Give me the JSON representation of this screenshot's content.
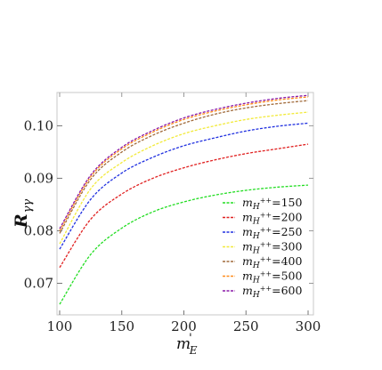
{
  "chart_data": {
    "type": "line",
    "xlabel_main": "m",
    "xlabel_sup": "'",
    "xlabel_sub": "E",
    "ylabel_main": "R",
    "ylabel_sub": "γγ",
    "xlim": [
      100,
      300
    ],
    "ylim": [
      0.065,
      0.106
    ],
    "xticks": [
      100,
      150,
      200,
      250,
      300
    ],
    "yticks": [
      0.07,
      0.08,
      0.09,
      0.1
    ],
    "ytick_labels": [
      "0.07",
      "0.08",
      "0.09",
      "0.10"
    ],
    "legend_position": "bottom-right",
    "line_style": "dashed",
    "x": [
      100,
      125,
      150,
      175,
      200,
      225,
      250,
      275,
      300
    ],
    "series": [
      {
        "prefix": "m",
        "sub": "H",
        "sup": "++",
        "value": "=150",
        "color": "#22dd22",
        "values": [
          0.066,
          0.0755,
          0.0805,
          0.0836,
          0.0855,
          0.0868,
          0.0877,
          0.0883,
          0.0887
        ]
      },
      {
        "prefix": "m",
        "sub": "H",
        "sup": "++",
        "value": "=200",
        "color": "#e02020",
        "values": [
          0.073,
          0.0822,
          0.087,
          0.09,
          0.092,
          0.0935,
          0.0947,
          0.0956,
          0.0965
        ]
      },
      {
        "prefix": "m",
        "sub": "H",
        "sup": "++",
        "value": "=250",
        "color": "#2030e0",
        "values": [
          0.0765,
          0.086,
          0.091,
          0.094,
          0.0962,
          0.0977,
          0.099,
          0.0999,
          0.1005
        ]
      },
      {
        "prefix": "m",
        "sub": "H",
        "sup": "++",
        "value": "=300",
        "color": "#f2ea3a",
        "values": [
          0.0775,
          0.088,
          0.093,
          0.0962,
          0.0985,
          0.1,
          0.1012,
          0.102,
          0.1026
        ]
      },
      {
        "prefix": "m",
        "sub": "H",
        "sup": "++",
        "value": "=400",
        "color": "#a06a3a",
        "values": [
          0.0795,
          0.0898,
          0.095,
          0.0982,
          0.1005,
          0.1022,
          0.1034,
          0.1042,
          0.1048
        ]
      },
      {
        "prefix": "m",
        "sub": "H",
        "sup": "++",
        "value": "=500",
        "color": "#ff8c1a",
        "values": [
          0.08,
          0.0903,
          0.0956,
          0.0988,
          0.1012,
          0.1028,
          0.104,
          0.1049,
          0.1055
        ]
      },
      {
        "prefix": "m",
        "sub": "H",
        "sup": "++",
        "value": "=600",
        "color": "#8a1aa8",
        "values": [
          0.0804,
          0.0906,
          0.0959,
          0.0991,
          0.1015,
          0.1031,
          0.1043,
          0.1052,
          0.1058
        ]
      }
    ]
  }
}
